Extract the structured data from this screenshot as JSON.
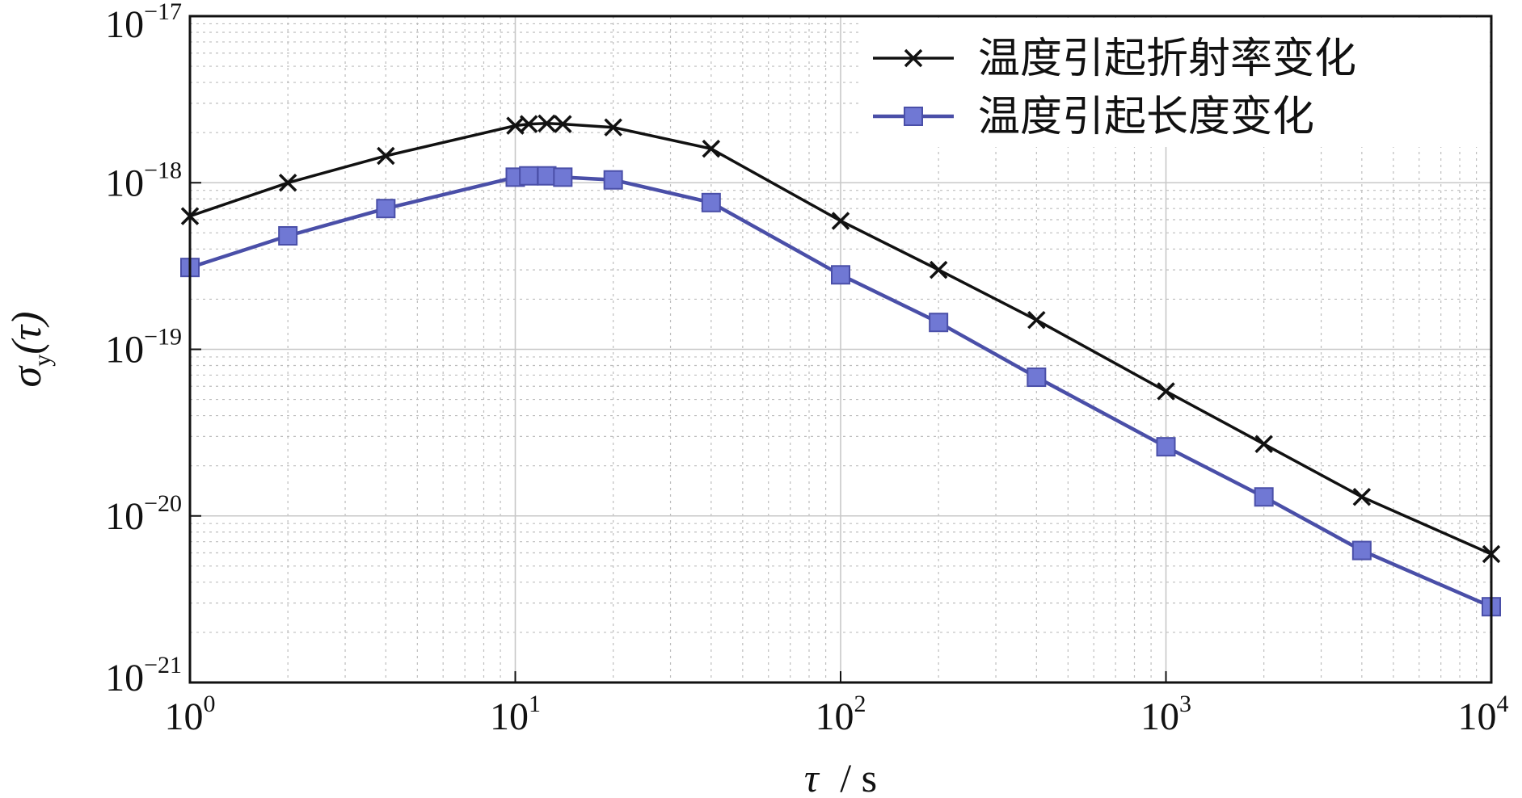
{
  "chart_data": {
    "type": "line",
    "xlabel_symbol": "τ",
    "xlabel_unit": "/ s",
    "ylabel_symbol": "σ",
    "ylabel_sub": "y",
    "ylabel_arg": "(τ)",
    "x_scale": "log",
    "y_scale": "log",
    "xlim": [
      1,
      10000
    ],
    "ylim": [
      1e-21,
      1e-17
    ],
    "x_ticks": [
      {
        "base": "10",
        "exp": "0",
        "value": 1
      },
      {
        "base": "10",
        "exp": "1",
        "value": 10
      },
      {
        "base": "10",
        "exp": "2",
        "value": 100
      },
      {
        "base": "10",
        "exp": "3",
        "value": 1000
      },
      {
        "base": "10",
        "exp": "4",
        "value": 10000
      }
    ],
    "y_ticks": [
      {
        "base": "10",
        "exp": "−17",
        "value": 1e-17
      },
      {
        "base": "10",
        "exp": "−18",
        "value": 1e-18
      },
      {
        "base": "10",
        "exp": "−19",
        "value": 1e-19
      },
      {
        "base": "10",
        "exp": "−20",
        "value": 1e-20
      },
      {
        "base": "10",
        "exp": "−21",
        "value": 1e-21
      }
    ],
    "grid": true,
    "legend_position": "top-right",
    "series": [
      {
        "name": "温度引起折射率变化",
        "color": "#111111",
        "marker": "x",
        "x": [
          1,
          2,
          4,
          10,
          11,
          12.5,
          14,
          20,
          40,
          100,
          200,
          400,
          1000,
          2000,
          4000,
          10000
        ],
        "y": [
          6.3e-19,
          1e-18,
          1.45e-18,
          2.2e-18,
          2.25e-18,
          2.27e-18,
          2.25e-18,
          2.15e-18,
          1.6e-18,
          5.9e-19,
          3e-19,
          1.5e-19,
          5.6e-20,
          2.7e-20,
          1.3e-20,
          5.9e-21
        ]
      },
      {
        "name": "温度引起长度变化",
        "color": "#4a4fa8",
        "marker": "square",
        "x": [
          1,
          2,
          4,
          10,
          11,
          12.5,
          14,
          20,
          40,
          100,
          200,
          400,
          1000,
          2000,
          4000,
          10000
        ],
        "y": [
          3.1e-19,
          4.8e-19,
          7e-19,
          1.08e-18,
          1.1e-18,
          1.1e-18,
          1.08e-18,
          1.04e-18,
          7.6e-19,
          2.8e-19,
          1.45e-19,
          6.8e-20,
          2.6e-20,
          1.3e-20,
          6.2e-21,
          2.85e-21
        ]
      }
    ]
  }
}
